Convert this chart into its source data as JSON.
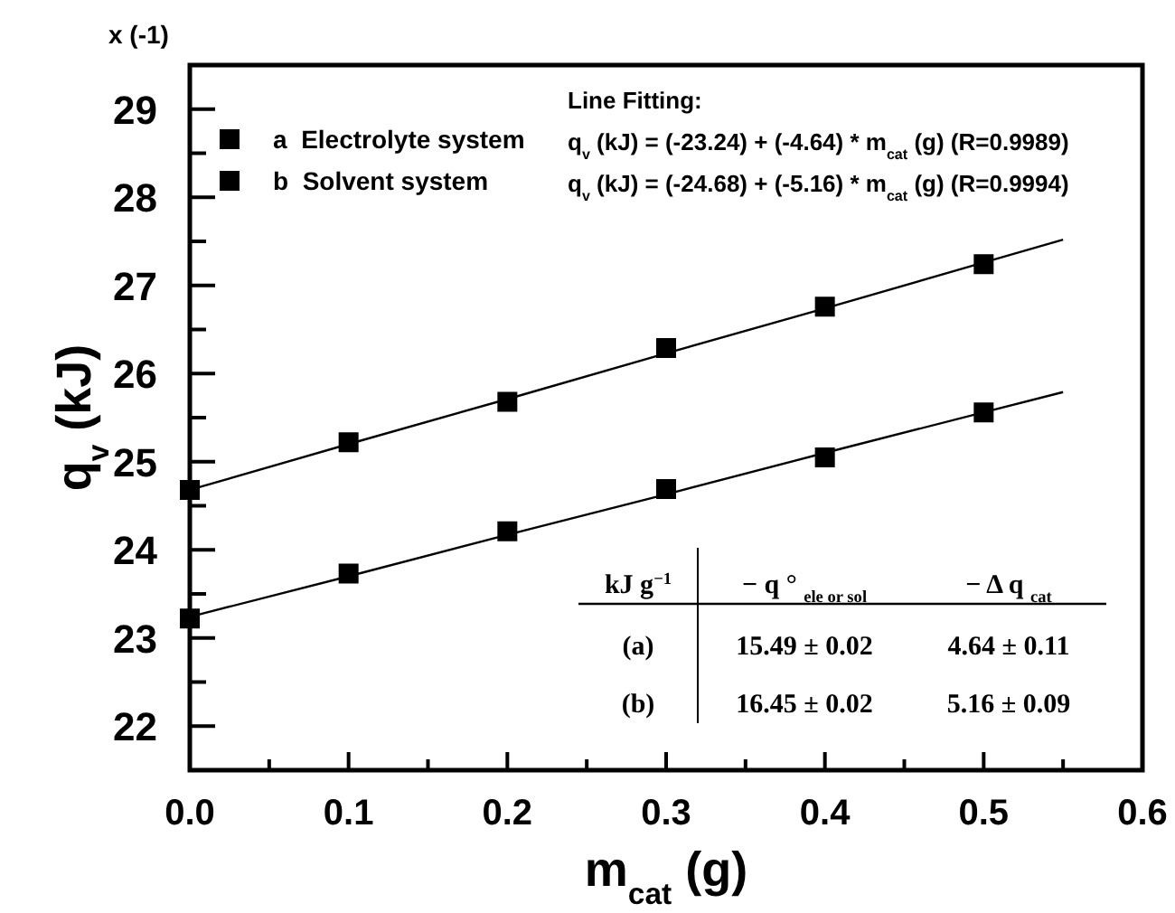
{
  "chart_data": {
    "type": "scatter",
    "xlabel": "m$_{cat}$ (g)",
    "ylabel": "q$_{v}$ (kJ)",
    "xlim": [
      0,
      0.6
    ],
    "ylim": [
      21.5,
      29.5
    ],
    "xticks": [
      {
        "value": 0,
        "label": "0.0"
      },
      {
        "value": 0.05,
        "label": null
      },
      0.1,
      {
        "value": 0.15,
        "label": null
      },
      0.2,
      {
        "value": 0.25,
        "label": null
      },
      0.3,
      {
        "value": 0.35,
        "label": null
      },
      0.4,
      {
        "value": 0.45,
        "label": null
      },
      0.5,
      {
        "value": 0.55,
        "label": null
      },
      0.6
    ],
    "yticks": [
      {
        "value": 21.5,
        "label": null
      },
      22,
      {
        "value": 22.5,
        "label": null
      },
      23,
      {
        "value": 23.5,
        "label": null
      },
      24,
      {
        "value": 24.5,
        "label": null
      },
      25,
      {
        "value": 25.5,
        "label": null
      },
      26,
      {
        "value": 26.5,
        "label": null
      },
      27,
      {
        "value": 27.5,
        "label": null
      },
      28,
      {
        "value": 28.5,
        "label": null
      },
      29
    ],
    "grid": false,
    "legend": "top left",
    "x": [
      0,
      0.1,
      0.2,
      0.3,
      0.4,
      0.5,
      0.55
    ],
    "series": [
      {
        "name": "a  Electrolyte system",
        "color": "#000000",
        "marker": "square",
        "values": [
          23.22,
          23.73,
          24.21,
          24.69,
          25.05,
          25.56,
          null
        ]
      },
      {
        "name": "b  Solvent system",
        "color": "#000000",
        "marker": "square",
        "values": [
          24.68,
          25.22,
          25.68,
          26.29,
          26.76,
          27.24,
          null
        ]
      },
      {
        "type": "line",
        "color": "#000000",
        "values": [
          23.24,
          23.7,
          24.17,
          24.63,
          25.1,
          25.56,
          25.79
        ]
      },
      {
        "type": "line",
        "color": "#000000",
        "values": [
          24.68,
          25.2,
          25.71,
          26.23,
          26.74,
          27.26,
          27.52
        ]
      }
    ],
    "annotations": [
      "x (-1)",
      "Line Fitting:",
      "q$_{v}$ (kJ) = (-23.24) + (-4.64) * m$_{cat}$ (g)  (R=0.9989)",
      "q$_{v}$ (kJ) = (-24.68) + (-5.16) * m$_{cat}$ (g)  (R=0.9994)",
      "kJ g$^{−1}$",
      "− q ° $_{ele or sol}$",
      "− Δ q $_{cat}$",
      "(a)",
      "15.49 ± 0.02",
      "4.64 ± 0.11",
      "(b)",
      "16.45 ± 0.02",
      "5.16 ± 0.09"
    ]
  }
}
